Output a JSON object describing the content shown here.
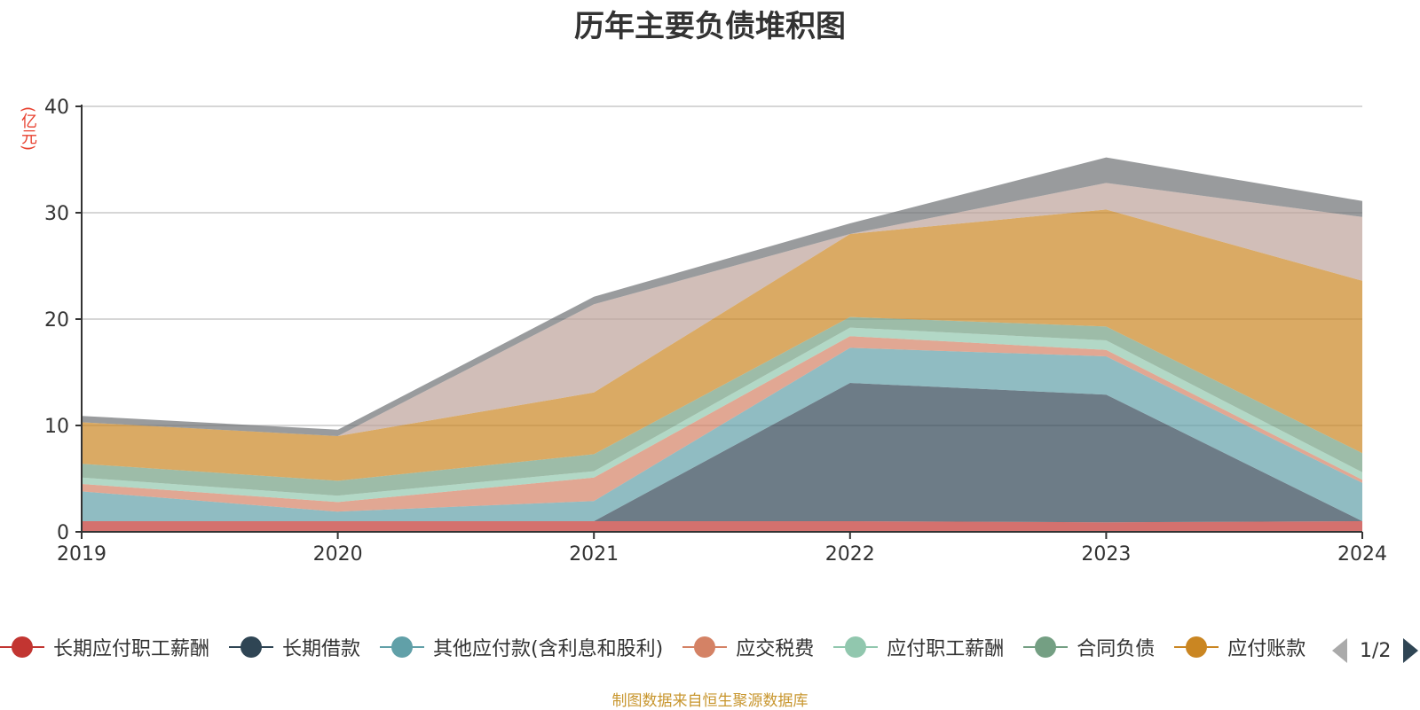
{
  "unit": "(亿元)",
  "source_note": "制图数据来自恒生聚源数据库",
  "pager": {
    "text": "1/2"
  },
  "chart_data": {
    "type": "area",
    "stacked": true,
    "title": "历年主要负债堆积图",
    "ylabel": "(亿元)",
    "x": [
      "2019",
      "2020",
      "2021",
      "2022",
      "2023",
      "2024"
    ],
    "ylim": [
      0,
      40
    ],
    "yticks": [
      0,
      10,
      20,
      30,
      40
    ],
    "grid": true,
    "legend_position": "bottom",
    "series": [
      {
        "name": "长期应付职工薪酬",
        "color": "#c23531",
        "values": [
          1.0,
          1.0,
          1.0,
          1.0,
          0.9,
          1.0
        ]
      },
      {
        "name": "长期借款",
        "color": "#2f4554",
        "values": [
          0.0,
          0.0,
          0.0,
          13.0,
          12.0,
          0.0
        ]
      },
      {
        "name": "其他应付款(含利息和股利)",
        "color": "#61a0a8",
        "values": [
          2.8,
          0.9,
          1.9,
          3.3,
          3.6,
          3.6
        ]
      },
      {
        "name": "应交税费",
        "color": "#d48265",
        "values": [
          0.7,
          0.9,
          2.2,
          1.1,
          0.6,
          0.3
        ]
      },
      {
        "name": "应付职工薪酬",
        "color": "#91c7ae",
        "values": [
          0.6,
          0.6,
          0.6,
          0.8,
          0.9,
          0.7
        ]
      },
      {
        "name": "合同负债",
        "color": "#749f83",
        "values": [
          1.3,
          1.4,
          1.6,
          1.0,
          1.3,
          1.8
        ]
      },
      {
        "name": "应付账款",
        "color": "#ca8622",
        "values": [
          3.9,
          4.2,
          5.8,
          7.8,
          11.0,
          16.2
        ]
      },
      {
        "name": "",
        "color": "#bda29a",
        "values": [
          0.0,
          0.0,
          8.3,
          0.0,
          2.5,
          6.0
        ]
      },
      {
        "name": "",
        "color": "#6e7074",
        "values": [
          0.6,
          0.6,
          0.7,
          1.0,
          2.4,
          1.5
        ]
      }
    ]
  }
}
